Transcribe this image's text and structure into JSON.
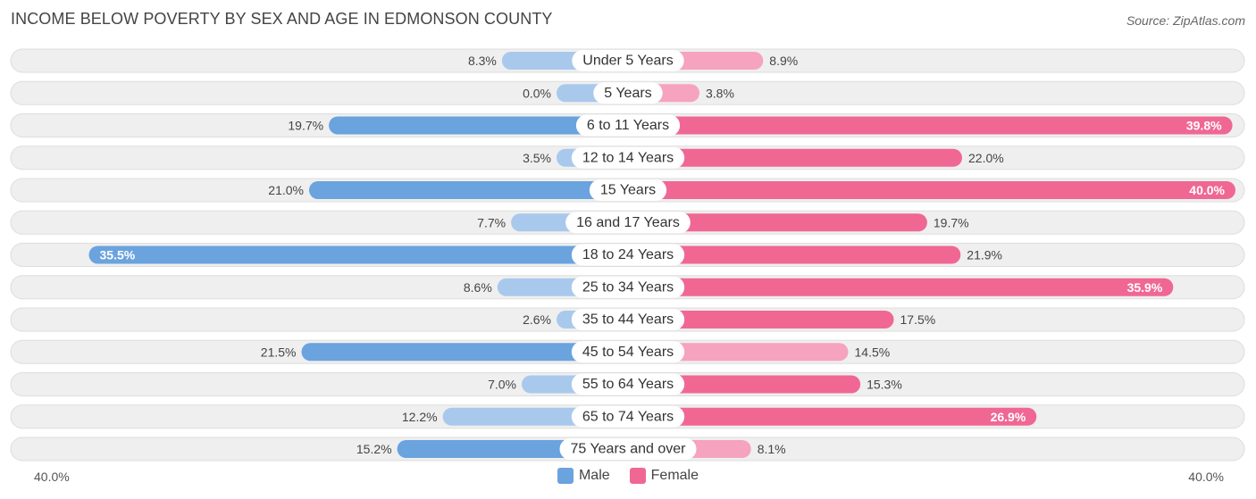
{
  "title": "INCOME BELOW POVERTY BY SEX AND AGE IN EDMONSON COUNTY",
  "source": "Source: ZipAtlas.com",
  "axis": {
    "left_label": "40.0%",
    "right_label": "40.0%"
  },
  "legend": {
    "male_label": "Male",
    "female_label": "Female"
  },
  "colors": {
    "male_strong": "#6aa3de",
    "male_light": "#a9c9ec",
    "female_strong": "#f06794",
    "female_light": "#f6a3bf",
    "row_bg": "#efefef",
    "row_border": "#dddddd"
  },
  "chart_data": {
    "type": "bar",
    "orientation": "horizontal-diverging",
    "title": "INCOME BELOW POVERTY BY SEX AND AGE IN EDMONSON COUNTY",
    "xlim": [
      -40,
      40
    ],
    "categories": [
      "Under 5 Years",
      "5 Years",
      "6 to 11 Years",
      "12 to 14 Years",
      "15 Years",
      "16 and 17 Years",
      "18 to 24 Years",
      "25 to 34 Years",
      "35 to 44 Years",
      "45 to 54 Years",
      "55 to 64 Years",
      "65 to 74 Years",
      "75 Years and over"
    ],
    "series": [
      {
        "name": "Male",
        "values": [
          8.3,
          0.0,
          19.7,
          3.5,
          21.0,
          7.7,
          35.5,
          8.6,
          2.6,
          21.5,
          7.0,
          12.2,
          15.2
        ],
        "labels": [
          "8.3%",
          "0.0%",
          "19.7%",
          "3.5%",
          "21.0%",
          "7.7%",
          "35.5%",
          "8.6%",
          "2.6%",
          "21.5%",
          "7.0%",
          "12.2%",
          "15.2%"
        ]
      },
      {
        "name": "Female",
        "values": [
          8.9,
          3.8,
          39.8,
          22.0,
          40.0,
          19.7,
          21.9,
          35.9,
          17.5,
          14.5,
          15.3,
          26.9,
          8.1
        ],
        "labels": [
          "8.9%",
          "3.8%",
          "39.8%",
          "22.0%",
          "40.0%",
          "19.7%",
          "21.9%",
          "35.9%",
          "17.5%",
          "14.5%",
          "15.3%",
          "26.9%",
          "8.1%"
        ]
      }
    ],
    "legend_position": "bottom-center"
  }
}
